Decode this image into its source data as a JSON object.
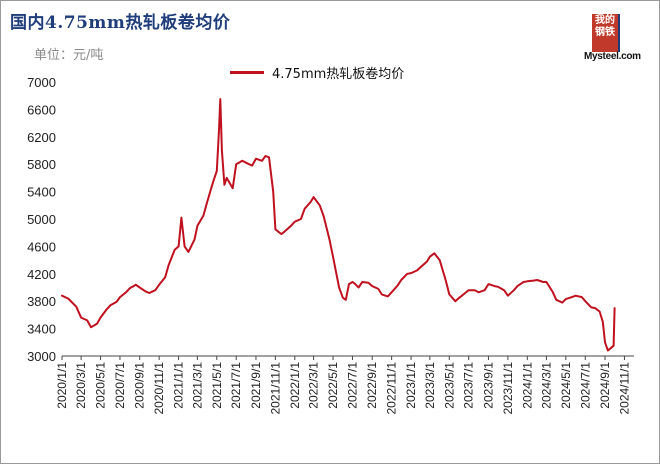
{
  "header": {
    "title": "国内4.75mm热轧板卷均价",
    "unit": "单位：元/吨"
  },
  "logo": {
    "chars": "我的钢铁",
    "brand": "Mysteel.com"
  },
  "colors": {
    "series": "#c0111f",
    "title": "#1f3d7a"
  },
  "chart_data": {
    "type": "line",
    "series": [
      {
        "name": "4.75mm热轧板卷均价",
        "x": [
          "2020/1/1",
          "2020/1/20",
          "2020/2/15",
          "2020/3/1",
          "2020/3/20",
          "2020/4/1",
          "2020/4/20",
          "2020/5/1",
          "2020/5/20",
          "2020/6/1",
          "2020/6/20",
          "2020/7/1",
          "2020/7/20",
          "2020/8/1",
          "2020/8/20",
          "2020/9/1",
          "2020/9/20",
          "2020/10/1",
          "2020/10/20",
          "2020/11/1",
          "2020/11/20",
          "2020/12/1",
          "2020/12/20",
          "2021/1/1",
          "2021/1/10",
          "2021/1/20",
          "2021/2/1",
          "2021/2/20",
          "2021/3/1",
          "2021/3/20",
          "2021/4/1",
          "2021/4/20",
          "2021/5/1",
          "2021/5/8",
          "2021/5/12",
          "2021/5/17",
          "2021/5/25",
          "2021/6/1",
          "2021/6/20",
          "2021/7/1",
          "2021/7/20",
          "2021/8/1",
          "2021/8/20",
          "2021/9/1",
          "2021/9/20",
          "2021/10/1",
          "2021/10/12",
          "2021/10/25",
          "2021/11/1",
          "2021/11/20",
          "2021/12/1",
          "2021/12/20",
          "2022/1/1",
          "2022/1/20",
          "2022/2/1",
          "2022/2/20",
          "2022/3/1",
          "2022/3/20",
          "2022/4/1",
          "2022/4/20",
          "2022/5/1",
          "2022/5/20",
          "2022/6/1",
          "2022/6/10",
          "2022/6/20",
          "2022/7/1",
          "2022/7/10",
          "2022/7/20",
          "2022/8/1",
          "2022/8/20",
          "2022/9/1",
          "2022/9/20",
          "2022/10/1",
          "2022/10/20",
          "2022/11/1",
          "2022/11/20",
          "2022/12/1",
          "2022/12/20",
          "2023/1/1",
          "2023/1/20",
          "2023/2/1",
          "2023/2/20",
          "2023/3/1",
          "2023/3/15",
          "2023/4/1",
          "2023/4/20",
          "2023/5/1",
          "2023/5/20",
          "2023/6/1",
          "2023/6/20",
          "2023/7/1",
          "2023/7/20",
          "2023/8/1",
          "2023/8/20",
          "2023/9/1",
          "2023/9/20",
          "2023/10/1",
          "2023/10/20",
          "2023/11/1",
          "2023/11/20",
          "2023/12/1",
          "2023/12/20",
          "2024/1/1",
          "2024/1/20",
          "2024/2/1",
          "2024/2/20",
          "2024/3/1",
          "2024/3/20",
          "2024/4/1",
          "2024/4/20",
          "2024/5/1",
          "2024/5/20",
          "2024/6/1",
          "2024/6/20",
          "2024/7/1",
          "2024/7/20",
          "2024/8/1",
          "2024/8/15",
          "2024/8/25",
          "2024/9/1",
          "2024/9/10",
          "2024/9/20",
          "2024/9/28",
          "2024/10/1"
        ],
        "values": [
          3880,
          3840,
          3720,
          3560,
          3520,
          3420,
          3470,
          3560,
          3680,
          3740,
          3790,
          3860,
          3930,
          3990,
          4040,
          4000,
          3940,
          3920,
          3960,
          4040,
          4150,
          4330,
          4550,
          4600,
          5020,
          4600,
          4520,
          4700,
          4900,
          5050,
          5250,
          5550,
          5700,
          6300,
          6750,
          6000,
          5500,
          5600,
          5450,
          5800,
          5850,
          5820,
          5780,
          5880,
          5850,
          5920,
          5900,
          5400,
          4850,
          4780,
          4820,
          4900,
          4960,
          5000,
          5150,
          5250,
          5320,
          5200,
          5050,
          4700,
          4450,
          4000,
          3850,
          3820,
          4050,
          4080,
          4050,
          4000,
          4080,
          4070,
          4020,
          3980,
          3900,
          3870,
          3930,
          4030,
          4110,
          4200,
          4210,
          4250,
          4300,
          4380,
          4450,
          4500,
          4400,
          4100,
          3900,
          3800,
          3850,
          3920,
          3960,
          3960,
          3930,
          3960,
          4050,
          4020,
          4010,
          3960,
          3880,
          3960,
          4020,
          4080,
          4090,
          4100,
          4110,
          4080,
          4080,
          3940,
          3820,
          3780,
          3830,
          3860,
          3880,
          3860,
          3800,
          3710,
          3700,
          3650,
          3500,
          3200,
          3080,
          3120,
          3150,
          3700
        ]
      }
    ],
    "ylim": [
      3000,
      7000
    ],
    "yticks": [
      3000,
      3400,
      3800,
      4200,
      4600,
      5000,
      5400,
      5800,
      6200,
      6600,
      7000
    ],
    "xticks": [
      "2020/1/1",
      "2020/3/1",
      "2020/5/1",
      "2020/7/1",
      "2020/9/1",
      "2020/11/1",
      "2021/1/1",
      "2021/3/1",
      "2021/5/1",
      "2021/7/1",
      "2021/9/1",
      "2021/11/1",
      "2022/1/1",
      "2022/3/1",
      "2022/5/1",
      "2022/7/1",
      "2022/9/1",
      "2022/11/1",
      "2023/1/1",
      "2023/3/1",
      "2023/5/1",
      "2023/7/1",
      "2023/9/1",
      "2023/11/1",
      "2024/1/1",
      "2024/3/1",
      "2024/5/1",
      "2024/7/1",
      "2024/9/1",
      "2024/11/1"
    ],
    "grid": false,
    "legend": "top"
  }
}
